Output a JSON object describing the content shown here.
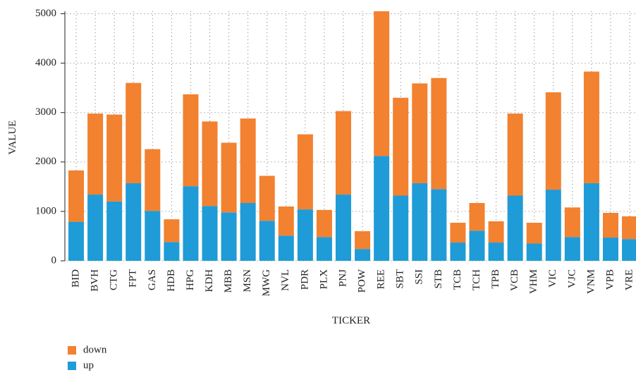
{
  "chart_data": {
    "type": "stacked-bar",
    "x_label": "TICKER",
    "y_label": "VALUE",
    "categories": [
      "BID",
      "BVH",
      "CTG",
      "FPT",
      "GAS",
      "HDB",
      "HPG",
      "KDH",
      "MBB",
      "MSN",
      "MWG",
      "NVL",
      "PDR",
      "PLX",
      "PNJ",
      "POW",
      "REE",
      "SBT",
      "SSI",
      "STB",
      "TCB",
      "TCH",
      "TPB",
      "VCB",
      "VHM",
      "VIC",
      "VJC",
      "VNM",
      "VPB",
      "VRE"
    ],
    "series": [
      {
        "name": "up",
        "color": "#1f9bd7",
        "values": [
          790,
          1340,
          1200,
          1570,
          1010,
          380,
          1510,
          1110,
          980,
          1170,
          810,
          510,
          1040,
          480,
          1340,
          240,
          2120,
          1320,
          1570,
          1450,
          370,
          610,
          370,
          1320,
          350,
          1440,
          480,
          1570,
          470,
          440
        ]
      },
      {
        "name": "down",
        "color": "#f28130",
        "values": [
          1040,
          1640,
          1760,
          2030,
          1250,
          460,
          1860,
          1710,
          1410,
          1710,
          910,
          590,
          1520,
          550,
          1690,
          360,
          2930,
          1980,
          2020,
          2250,
          400,
          560,
          430,
          1660,
          420,
          1970,
          600,
          2260,
          500,
          460
        ]
      }
    ],
    "ylim": [
      0,
      5050
    ],
    "yticks": [
      0,
      1000,
      2000,
      3000,
      4000,
      5000
    ],
    "grid": true
  }
}
